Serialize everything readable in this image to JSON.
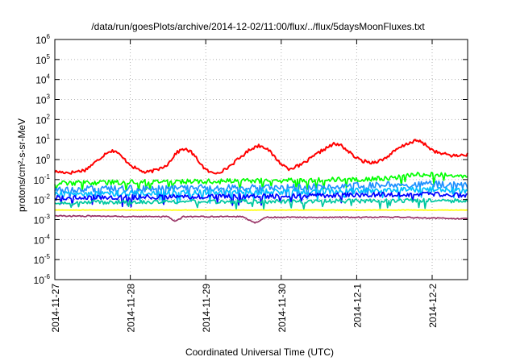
{
  "chart_data": {
    "type": "line",
    "title": "/data/run/goesPlots/archive/2014-12-02/11:00/flux/../flux/5daysMoonFluxes.txt",
    "xlabel": "Coordinated Universal Time (UTC)",
    "ylabel": "protons/cm²-s-sr-MeV",
    "y_scale": "log",
    "ylim": [
      1e-06,
      1000000.0
    ],
    "x_unit": "days",
    "xlim": [
      0,
      5.47
    ],
    "x_ticks": [
      {
        "value": 0,
        "label": "2014-11-27"
      },
      {
        "value": 1,
        "label": "2014-11-28"
      },
      {
        "value": 2,
        "label": "2014-11-29"
      },
      {
        "value": 3,
        "label": "2014-11-30"
      },
      {
        "value": 4,
        "label": "2014-12-1"
      },
      {
        "value": 5,
        "label": "2014-12-2"
      }
    ],
    "y_ticks": [
      {
        "value": 1e-06,
        "base": "10",
        "exp": "-6"
      },
      {
        "value": 1e-05,
        "base": "10",
        "exp": "-5"
      },
      {
        "value": 0.0001,
        "base": "10",
        "exp": "-4"
      },
      {
        "value": 0.001,
        "base": "10",
        "exp": "-3"
      },
      {
        "value": 0.01,
        "base": "10",
        "exp": "-2"
      },
      {
        "value": 0.1,
        "base": "10",
        "exp": "-1"
      },
      {
        "value": 1,
        "base": "10",
        "exp": "0"
      },
      {
        "value": 10,
        "base": "10",
        "exp": "1"
      },
      {
        "value": 100,
        "base": "10",
        "exp": "2"
      },
      {
        "value": 1000,
        "base": "10",
        "exp": "3"
      },
      {
        "value": 10000,
        "base": "10",
        "exp": "4"
      },
      {
        "value": 100000,
        "base": "10",
        "exp": "5"
      },
      {
        "value": 1000000,
        "base": "10",
        "exp": "6"
      }
    ],
    "grid": true,
    "legend": "none",
    "series": [
      {
        "color": "#ff0000",
        "points": [
          [
            0,
            0.25
          ],
          [
            0.2,
            0.22
          ],
          [
            0.4,
            0.3
          ],
          [
            0.55,
            0.8
          ],
          [
            0.7,
            2.5
          ],
          [
            0.8,
            2.8
          ],
          [
            0.9,
            1.2
          ],
          [
            1.05,
            0.4
          ],
          [
            1.2,
            0.22
          ],
          [
            1.35,
            0.3
          ],
          [
            1.5,
            0.6
          ],
          [
            1.6,
            2.0
          ],
          [
            1.7,
            3.5
          ],
          [
            1.8,
            2.5
          ],
          [
            1.9,
            0.9
          ],
          [
            2.0,
            0.3
          ],
          [
            2.1,
            0.2
          ],
          [
            2.25,
            0.3
          ],
          [
            2.45,
            1.2
          ],
          [
            2.6,
            3.5
          ],
          [
            2.7,
            5.0
          ],
          [
            2.8,
            4.0
          ],
          [
            2.9,
            1.5
          ],
          [
            3.0,
            0.6
          ],
          [
            3.1,
            0.35
          ],
          [
            3.25,
            0.5
          ],
          [
            3.4,
            1.2
          ],
          [
            3.55,
            3.0
          ],
          [
            3.7,
            6.0
          ],
          [
            3.8,
            5.0
          ],
          [
            3.95,
            1.6
          ],
          [
            4.05,
            0.9
          ],
          [
            4.2,
            0.7
          ],
          [
            4.35,
            1.0
          ],
          [
            4.55,
            3.5
          ],
          [
            4.7,
            7.0
          ],
          [
            4.8,
            9.0
          ],
          [
            4.9,
            6.0
          ],
          [
            5.0,
            3.0
          ],
          [
            5.1,
            2.0
          ],
          [
            5.2,
            1.8
          ],
          [
            5.3,
            1.5
          ],
          [
            5.47,
            1.8
          ]
        ]
      },
      {
        "color": "#00ff00",
        "points": [
          [
            0,
            0.065
          ],
          [
            0.5,
            0.07
          ],
          [
            1.0,
            0.075
          ],
          [
            1.5,
            0.08
          ],
          [
            2.0,
            0.08
          ],
          [
            2.5,
            0.085
          ],
          [
            3.0,
            0.09
          ],
          [
            3.5,
            0.1
          ],
          [
            4.0,
            0.1
          ],
          [
            4.5,
            0.12
          ],
          [
            4.8,
            0.18
          ],
          [
            5.1,
            0.18
          ],
          [
            5.47,
            0.13
          ]
        ]
      },
      {
        "color": "#1e90ff",
        "points": [
          [
            0,
            0.03
          ],
          [
            0.5,
            0.035
          ],
          [
            1.0,
            0.035
          ],
          [
            1.5,
            0.035
          ],
          [
            2.0,
            0.04
          ],
          [
            2.5,
            0.04
          ],
          [
            3.0,
            0.04
          ],
          [
            3.5,
            0.045
          ],
          [
            4.0,
            0.05
          ],
          [
            4.5,
            0.055
          ],
          [
            5.0,
            0.06
          ],
          [
            5.47,
            0.05
          ]
        ]
      },
      {
        "color": "#00c0ff",
        "points": [
          [
            0,
            0.018
          ],
          [
            0.5,
            0.02
          ],
          [
            1.0,
            0.02
          ],
          [
            1.5,
            0.022
          ],
          [
            2.0,
            0.022
          ],
          [
            2.5,
            0.024
          ],
          [
            3.0,
            0.025
          ],
          [
            3.5,
            0.026
          ],
          [
            4.0,
            0.028
          ],
          [
            4.5,
            0.03
          ],
          [
            5.0,
            0.032
          ],
          [
            5.47,
            0.028
          ]
        ]
      },
      {
        "color": "#0000ff",
        "points": [
          [
            0,
            0.012
          ],
          [
            0.5,
            0.013
          ],
          [
            1.0,
            0.013
          ],
          [
            1.5,
            0.014
          ],
          [
            2.0,
            0.014
          ],
          [
            2.5,
            0.015
          ],
          [
            3.0,
            0.015
          ],
          [
            3.5,
            0.016
          ],
          [
            4.0,
            0.017
          ],
          [
            4.5,
            0.018
          ],
          [
            5.0,
            0.018
          ],
          [
            5.47,
            0.016
          ]
        ]
      },
      {
        "color": "#00c8a0",
        "points": [
          [
            0,
            0.007
          ],
          [
            0.5,
            0.0072
          ],
          [
            1.0,
            0.0075
          ],
          [
            1.5,
            0.0076
          ],
          [
            2.0,
            0.0078
          ],
          [
            2.5,
            0.008
          ],
          [
            3.0,
            0.008
          ],
          [
            3.5,
            0.0082
          ],
          [
            4.0,
            0.0085
          ],
          [
            4.5,
            0.0088
          ],
          [
            5.0,
            0.009
          ],
          [
            5.47,
            0.0085
          ]
        ]
      },
      {
        "color": "#ffff00",
        "points": [
          [
            0,
            0.003
          ],
          [
            1.0,
            0.003
          ],
          [
            2.0,
            0.003
          ],
          [
            3.0,
            0.003
          ],
          [
            4.0,
            0.003
          ],
          [
            5.0,
            0.003
          ],
          [
            5.47,
            0.003
          ]
        ]
      },
      {
        "color": "#993366",
        "points": [
          [
            0,
            0.0015
          ],
          [
            0.5,
            0.0015
          ],
          [
            1.0,
            0.0014
          ],
          [
            1.5,
            0.0014
          ],
          [
            1.6,
            0.0008
          ],
          [
            1.7,
            0.0014
          ],
          [
            2.0,
            0.0014
          ],
          [
            2.5,
            0.0014
          ],
          [
            2.65,
            0.00065
          ],
          [
            2.8,
            0.0013
          ],
          [
            3.0,
            0.0013
          ],
          [
            3.5,
            0.0013
          ],
          [
            4.0,
            0.0013
          ],
          [
            4.5,
            0.0013
          ],
          [
            5.0,
            0.0012
          ],
          [
            5.47,
            0.0011
          ]
        ]
      }
    ]
  }
}
